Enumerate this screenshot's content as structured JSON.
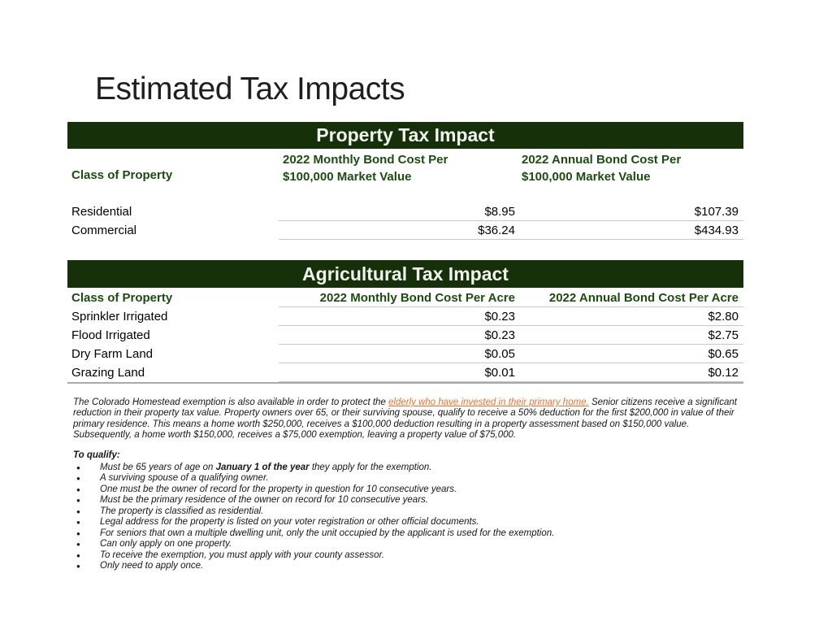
{
  "page": {
    "title": "Estimated Tax Impacts"
  },
  "colors": {
    "header_bar_green": "#16300a",
    "column_header_green": "#1b4d10",
    "link_orange": "#ed7230",
    "row_line_gray": "#c8c8c8",
    "bottom_line_gray": "#a9a9a9"
  },
  "property_table": {
    "bar_title": "Property Tax Impact",
    "col1_header": "Class of Property",
    "col2_header_line1": "2022 Monthly Bond Cost Per",
    "col2_header_line2": "$100,000 Market Value",
    "col3_header_line1": "2022 Annual Bond Cost Per",
    "col3_header_line2": "$100,000 Market Value",
    "rows": [
      {
        "label": "Residential",
        "monthly": "$8.95",
        "annual": "$107.39"
      },
      {
        "label": "Commercial",
        "monthly": "$36.24",
        "annual": "$434.93"
      }
    ]
  },
  "agricultural_table": {
    "bar_title": "Agricultural Tax Impact",
    "col1_header": "Class of Property",
    "col2_header": "2022 Monthly Bond Cost Per Acre",
    "col3_header": "2022 Annual Bond Cost Per Acre",
    "rows": [
      {
        "label": "Sprinkler Irrigated",
        "monthly": "$0.23",
        "annual": "$2.80"
      },
      {
        "label": "Flood Irrigated",
        "monthly": "$0.23",
        "annual": "$2.75"
      },
      {
        "label": "Dry Farm Land",
        "monthly": "$0.05",
        "annual": "$0.65"
      },
      {
        "label": "Grazing Land",
        "monthly": "$0.01",
        "annual": "$0.12"
      }
    ]
  },
  "homestead": {
    "paragraph_segments": [
      {
        "t": "The Colorado Homestead exemption is also available in order to protect the "
      },
      {
        "t": "elderly who have invested in their primary home.",
        "link": true
      },
      {
        "t": " Senior citizens receive a significant reduction in their property tax value. Property owners over 65, or their surviving spouse, qualify to receive a 50% deduction for the first $200,000 in value of their primary residence. This means a home worth $250,000, receives a $100,000 deduction resulting in a property assessment based on $150,000 value. Subsequently, a home worth $150,000, receives a $75,000 exemption, leaving a property value of $75,000."
      }
    ],
    "qualify_heading": "To qualify:",
    "bullet_char": "●",
    "bullets": [
      {
        "segments": [
          {
            "t": "Must be 65 years of age on "
          },
          {
            "t": "January 1 of the year",
            "b": true
          },
          {
            "t": " they apply for the exemption."
          }
        ]
      },
      {
        "segments": [
          {
            "t": "A surviving spouse of a qualifying owner."
          }
        ]
      },
      {
        "segments": [
          {
            "t": "One must be the owner of record for the property in question for 10 consecutive years."
          }
        ]
      },
      {
        "segments": [
          {
            "t": "Must be the primary residence of the owner on record for 10 consecutive years."
          }
        ]
      },
      {
        "segments": [
          {
            "t": "The property is classified as residential."
          }
        ]
      },
      {
        "segments": [
          {
            "t": "Legal address for the property is listed on your voter registration or other official documents."
          }
        ]
      },
      {
        "segments": [
          {
            "t": "For seniors that own a multiple dwelling unit, only the unit occupied by the applicant is used for the exemption."
          }
        ]
      },
      {
        "segments": [
          {
            "t": "Can only apply on one property."
          }
        ]
      },
      {
        "segments": [
          {
            "t": "To receive the exemption, you must apply with your county assessor."
          }
        ]
      },
      {
        "segments": [
          {
            "t": "Only need to apply once."
          }
        ]
      }
    ]
  }
}
